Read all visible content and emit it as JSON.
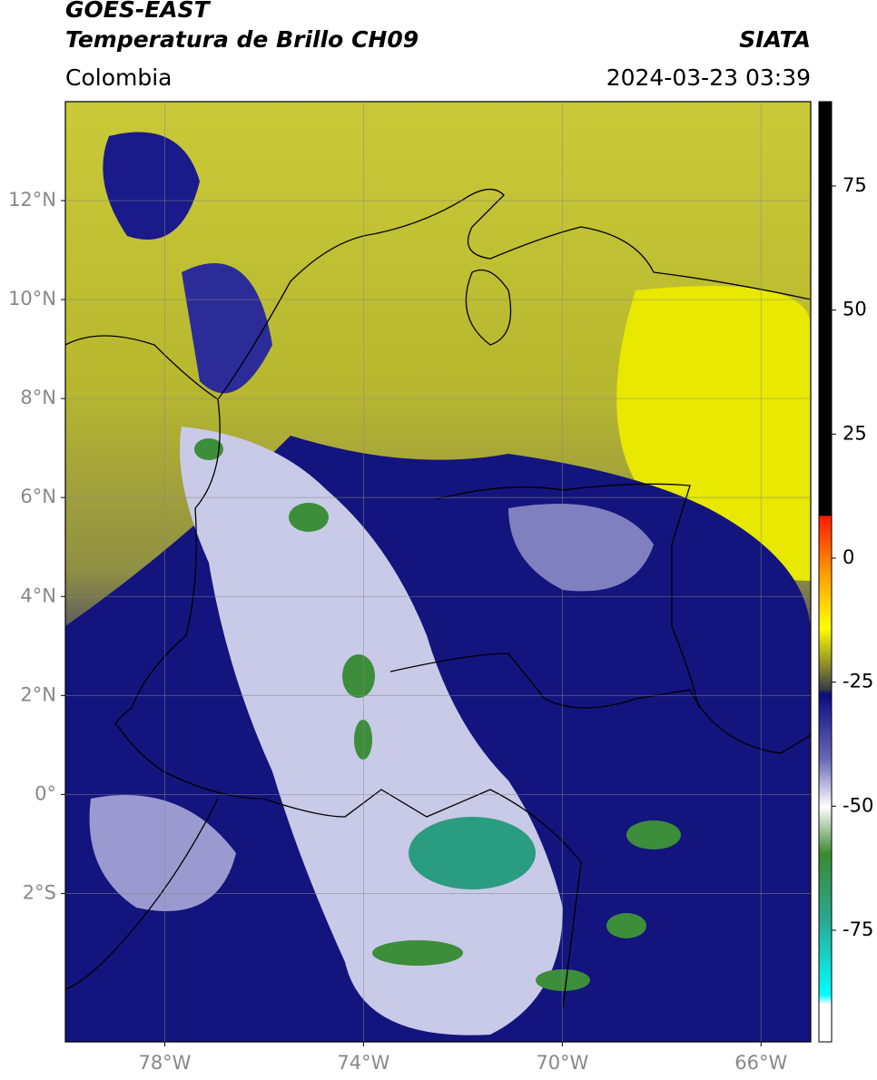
{
  "header": {
    "title": "GOES-EAST",
    "subtitle": "Temperatura de Brillo CH09",
    "source": "SIATA",
    "region": "Colombia",
    "datetime": "2024-03-23 03:39"
  },
  "map": {
    "xlim": [
      -80,
      -65
    ],
    "ylim": [
      -5,
      14
    ],
    "grid": true,
    "xticks": [
      {
        "value": -78,
        "label": "78°W"
      },
      {
        "value": -74,
        "label": "74°W"
      },
      {
        "value": -70,
        "label": "70°W"
      },
      {
        "value": -66,
        "label": "66°W"
      }
    ],
    "yticks": [
      {
        "value": 12,
        "label": "12°N"
      },
      {
        "value": 10,
        "label": "10°N"
      },
      {
        "value": 8,
        "label": "8°N"
      },
      {
        "value": 6,
        "label": "6°N"
      },
      {
        "value": 4,
        "label": "4°N"
      },
      {
        "value": 2,
        "label": "2°N"
      },
      {
        "value": 0,
        "label": "0°"
      },
      {
        "value": -2,
        "label": "2°S"
      }
    ]
  },
  "colorbar": {
    "lim": [
      -97.5,
      92
    ],
    "ticks": [
      75,
      50,
      25,
      0,
      -25,
      -50,
      -75
    ]
  }
}
